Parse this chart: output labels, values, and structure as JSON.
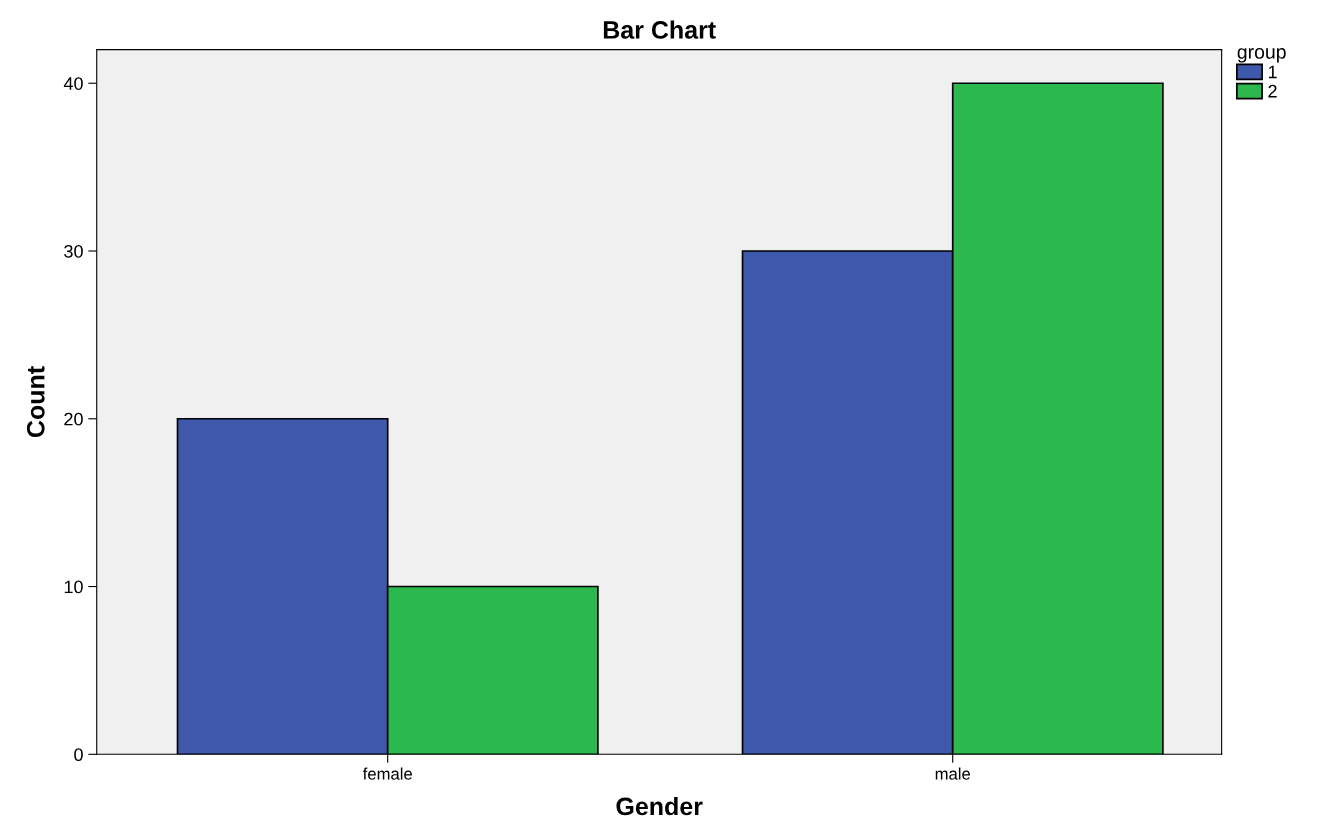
{
  "chart_data": {
    "type": "bar",
    "title": "Bar Chart",
    "xlabel": "Gender",
    "ylabel": "Count",
    "legend_title": "group",
    "categories": [
      "female",
      "male"
    ],
    "series": [
      {
        "name": "1",
        "color": "#3e58ac",
        "values": [
          20,
          30
        ]
      },
      {
        "name": "2",
        "color": "#2db84d",
        "values": [
          10,
          40
        ]
      }
    ],
    "ylim": [
      0,
      42
    ],
    "yticks": [
      0,
      10,
      20,
      30,
      40
    ],
    "grid": false,
    "legend": "top right"
  }
}
